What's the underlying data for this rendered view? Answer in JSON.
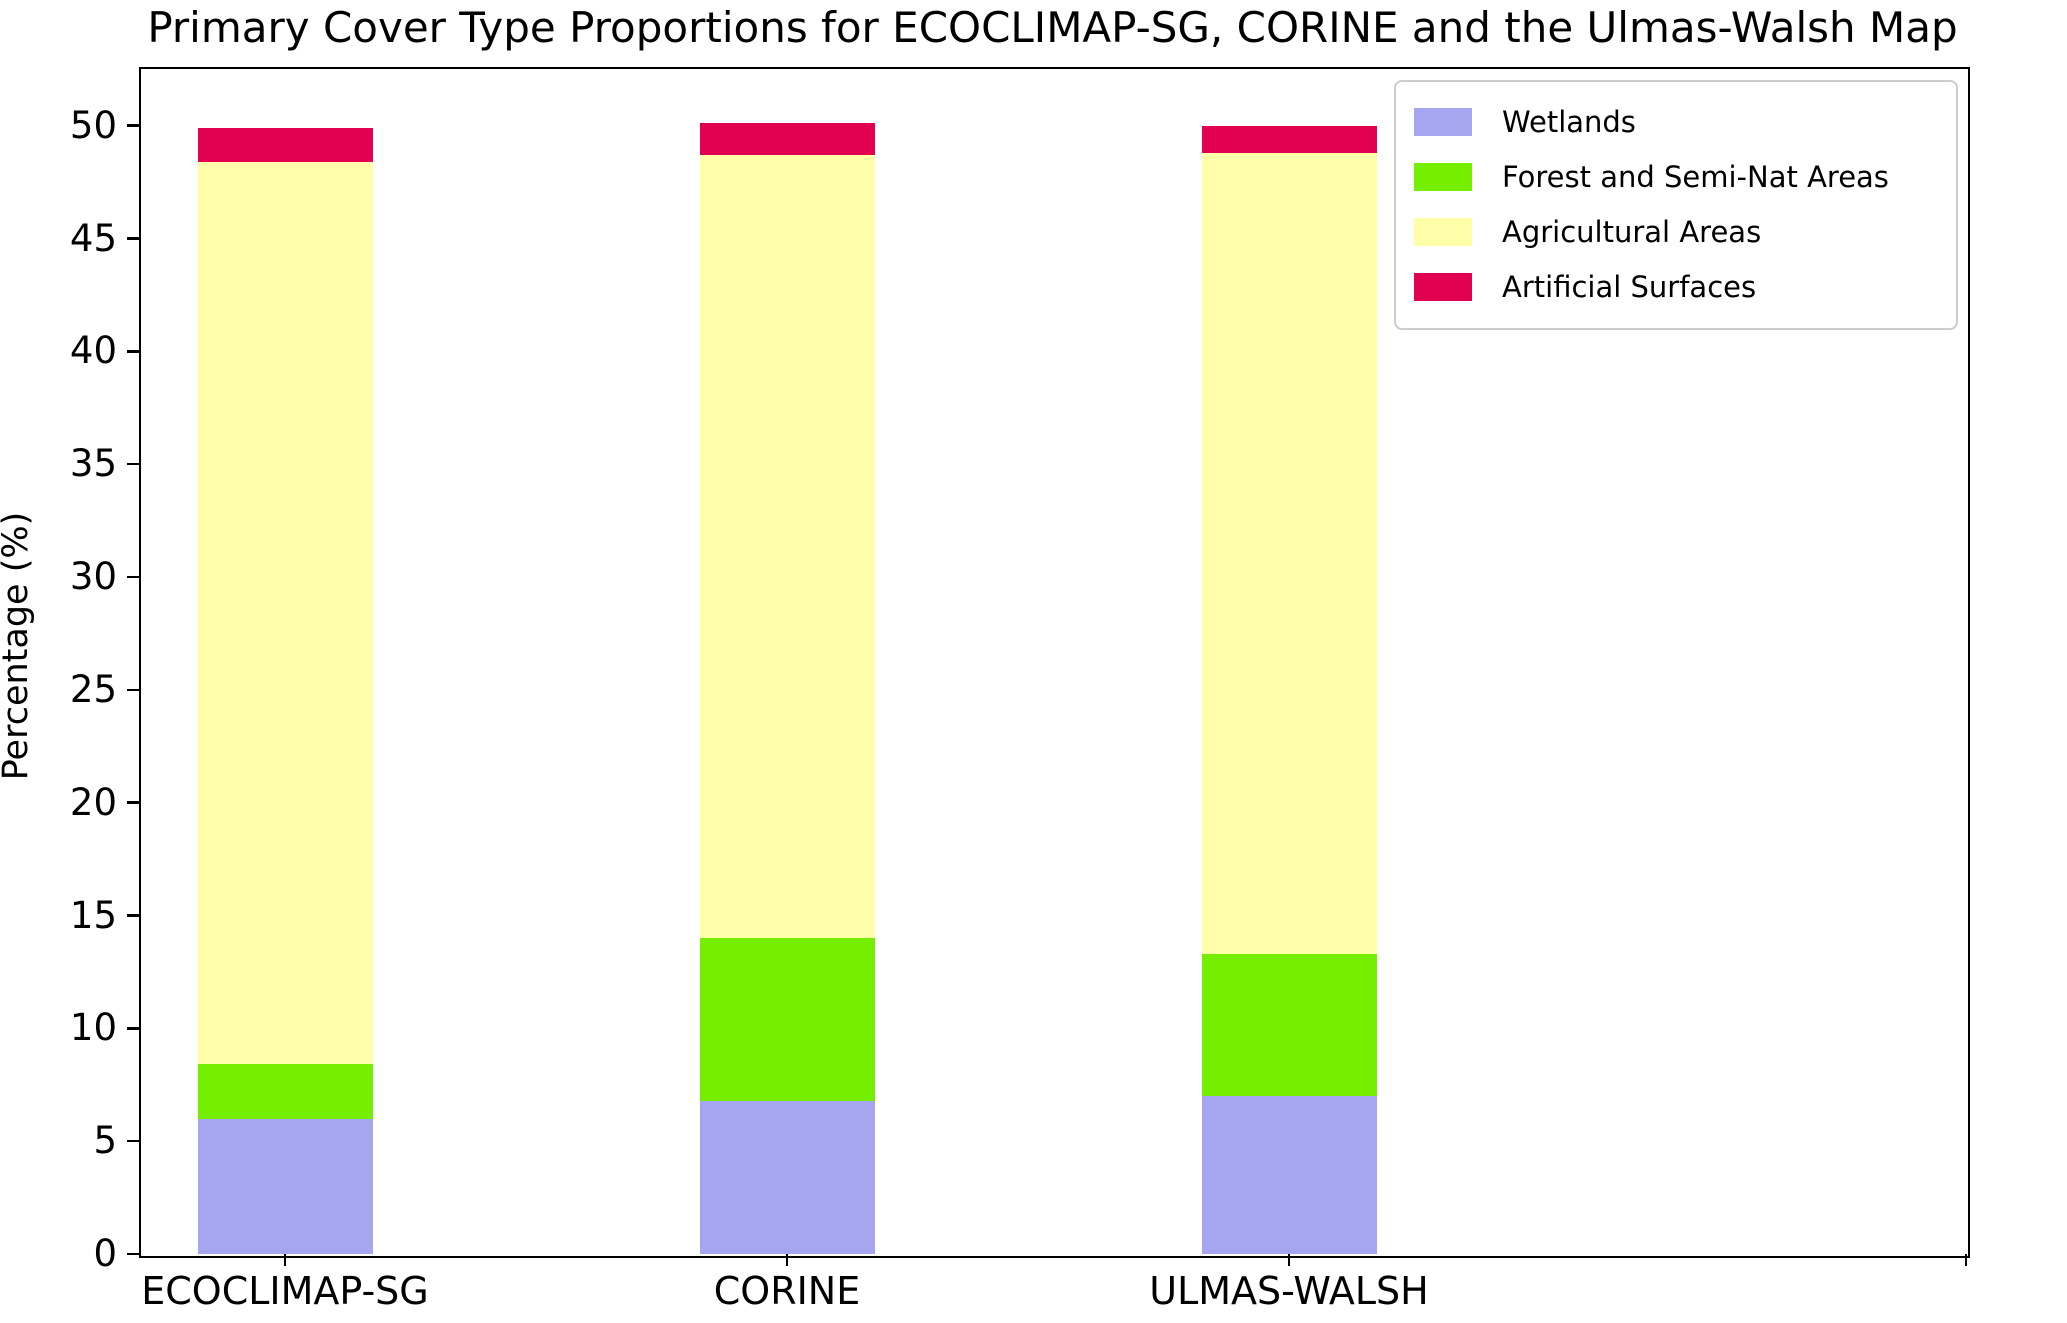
{
  "title": "Primary Cover Type Proportions for ECOCLIMAP-SG, CORINE and the Ulmas-Walsh Map",
  "chart_data": {
    "type": "bar",
    "stacked": true,
    "title": "Primary Cover Type Proportions for ECOCLIMAP-SG, CORINE and the Ulmas-Walsh Map",
    "categories": [
      "ECOCLIMAP-SG",
      "CORINE",
      "ULMAS-WALSH"
    ],
    "series": [
      {
        "name": "Wetlands",
        "color": "#a6a6f0",
        "values": [
          6.0,
          6.8,
          7.0
        ]
      },
      {
        "name": "Forest and Semi-Nat Areas",
        "color": "#76ee00",
        "values": [
          2.4,
          7.2,
          6.3
        ]
      },
      {
        "name": "Agricultural Areas",
        "color": "#ffffaa",
        "values": [
          40.0,
          34.7,
          35.5
        ]
      },
      {
        "name": "Artificial Surfaces",
        "color": "#e20150",
        "values": [
          1.5,
          1.4,
          1.2
        ]
      }
    ],
    "stack_totals": [
      49.9,
      50.1,
      50.0
    ],
    "xlabel": "",
    "ylabel": "Percentage (%)",
    "ylim": [
      0,
      52.6
    ],
    "yticks": [
      0,
      5,
      10,
      15,
      20,
      25,
      30,
      35,
      40,
      45,
      50
    ],
    "grid": false,
    "legend_position": "upper right",
    "background": "#ffffff",
    "axis_color": "#000000"
  }
}
